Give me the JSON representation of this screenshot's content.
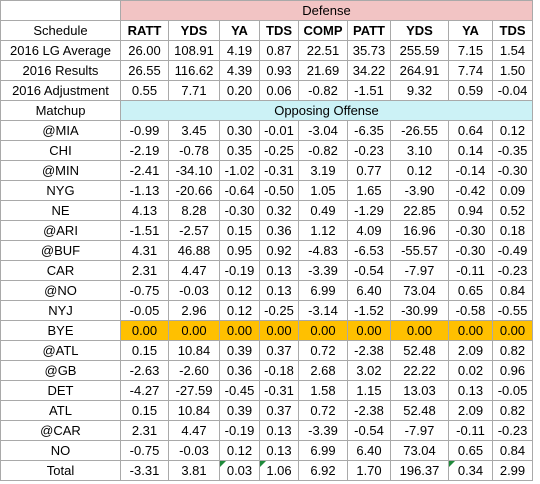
{
  "band_title": "Defense",
  "sub_band_title": "Opposing Offense",
  "columns": [
    "RATT",
    "YDS",
    "YA",
    "TDS",
    "COMP",
    "PATT",
    "YDS",
    "YA",
    "TDS"
  ],
  "top_rows": [
    {
      "label": "Schedule",
      "header": true
    },
    {
      "label": "2016 LG Average",
      "values": [
        "26.00",
        "108.91",
        "4.19",
        "0.87",
        "22.51",
        "35.73",
        "255.59",
        "7.15",
        "1.54"
      ]
    },
    {
      "label": "2016 Results",
      "values": [
        "26.55",
        "116.62",
        "4.39",
        "0.93",
        "21.69",
        "34.22",
        "264.91",
        "7.74",
        "1.50"
      ]
    },
    {
      "label": "2016 Adjustment",
      "values": [
        "0.55",
        "7.71",
        "0.20",
        "0.06",
        "-0.82",
        "-1.51",
        "9.32",
        "0.59",
        "-0.04"
      ]
    }
  ],
  "matchup_label": "Matchup",
  "rows": [
    {
      "label": "@MIA",
      "values": [
        "-0.99",
        "3.45",
        "0.30",
        "-0.01",
        "-3.04",
        "-6.35",
        "-26.55",
        "0.64",
        "0.12"
      ]
    },
    {
      "label": "CHI",
      "values": [
        "-2.19",
        "-0.78",
        "0.35",
        "-0.25",
        "-0.82",
        "-0.23",
        "3.10",
        "0.14",
        "-0.35"
      ]
    },
    {
      "label": "@MIN",
      "values": [
        "-2.41",
        "-34.10",
        "-1.02",
        "-0.31",
        "3.19",
        "0.77",
        "0.12",
        "-0.14",
        "-0.30"
      ]
    },
    {
      "label": "NYG",
      "values": [
        "-1.13",
        "-20.66",
        "-0.64",
        "-0.50",
        "1.05",
        "1.65",
        "-3.90",
        "-0.42",
        "0.09"
      ]
    },
    {
      "label": "NE",
      "values": [
        "4.13",
        "8.28",
        "-0.30",
        "0.32",
        "0.49",
        "-1.29",
        "22.85",
        "0.94",
        "0.52"
      ]
    },
    {
      "label": "@ARI",
      "values": [
        "-1.51",
        "-2.57",
        "0.15",
        "0.36",
        "1.12",
        "4.09",
        "16.96",
        "-0.30",
        "0.18"
      ]
    },
    {
      "label": "@BUF",
      "values": [
        "4.31",
        "46.88",
        "0.95",
        "0.92",
        "-4.83",
        "-6.53",
        "-55.57",
        "-0.30",
        "-0.49"
      ]
    },
    {
      "label": "CAR",
      "values": [
        "2.31",
        "4.47",
        "-0.19",
        "0.13",
        "-3.39",
        "-0.54",
        "-7.97",
        "-0.11",
        "-0.23"
      ]
    },
    {
      "label": "@NO",
      "values": [
        "-0.75",
        "-0.03",
        "0.12",
        "0.13",
        "6.99",
        "6.40",
        "73.04",
        "0.65",
        "0.84"
      ]
    },
    {
      "label": "NYJ",
      "values": [
        "-0.05",
        "2.96",
        "0.12",
        "-0.25",
        "-3.14",
        "-1.52",
        "-30.99",
        "-0.58",
        "-0.55"
      ]
    },
    {
      "label": "BYE",
      "values": [
        "0.00",
        "0.00",
        "0.00",
        "0.00",
        "0.00",
        "0.00",
        "0.00",
        "0.00",
        "0.00"
      ],
      "bye": true
    },
    {
      "label": "@ATL",
      "values": [
        "0.15",
        "10.84",
        "0.39",
        "0.37",
        "0.72",
        "-2.38",
        "52.48",
        "2.09",
        "0.82"
      ]
    },
    {
      "label": "@GB",
      "values": [
        "-2.63",
        "-2.60",
        "0.36",
        "-0.18",
        "2.68",
        "3.02",
        "22.22",
        "0.02",
        "0.96"
      ]
    },
    {
      "label": "DET",
      "values": [
        "-4.27",
        "-27.59",
        "-0.45",
        "-0.31",
        "1.58",
        "1.15",
        "13.03",
        "0.13",
        "-0.05"
      ]
    },
    {
      "label": "ATL",
      "values": [
        "0.15",
        "10.84",
        "0.39",
        "0.37",
        "0.72",
        "-2.38",
        "52.48",
        "2.09",
        "0.82"
      ]
    },
    {
      "label": "@CAR",
      "values": [
        "2.31",
        "4.47",
        "-0.19",
        "0.13",
        "-3.39",
        "-0.54",
        "-7.97",
        "-0.11",
        "-0.23"
      ]
    },
    {
      "label": "NO",
      "values": [
        "-0.75",
        "-0.03",
        "0.12",
        "0.13",
        "6.99",
        "6.40",
        "73.04",
        "0.65",
        "0.84"
      ]
    },
    {
      "label": "Total",
      "values": [
        "-3.31",
        "3.81",
        "0.03",
        "1.06",
        "6.92",
        "1.70",
        "196.37",
        "0.34",
        "2.99"
      ]
    }
  ],
  "colors": {
    "defense_band": "#f2c4c4",
    "offense_band": "#ccf2f6",
    "bye_highlight": "#ffc000",
    "grid": "#a9a9a9",
    "error_flag": "#1f8a3b"
  }
}
